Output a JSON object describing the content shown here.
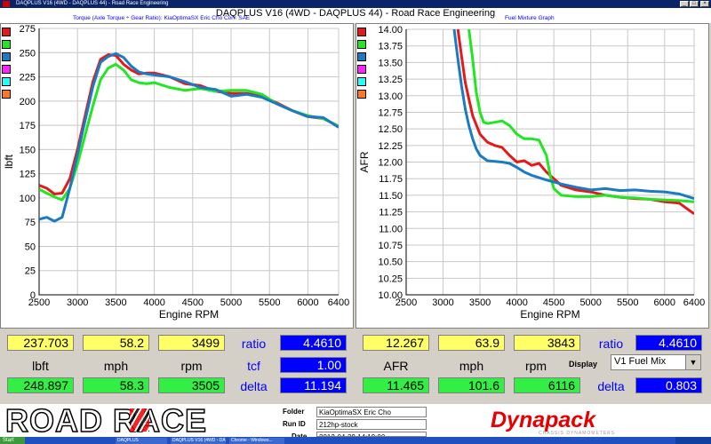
{
  "window": {
    "title": "DAQPLUS V16 (4WD - DAQPLUS 44) - Road Race Engineering",
    "title_bar_text": "DAQPLUS V16 (4WD - DAQPLUS 44) - Road Race Engineering"
  },
  "header": {
    "left_subtitle": "Torque (Axle Torque ÷ Gear Ratio): KiaOptimaSX Eric Cho     Corr: SAE",
    "right_subtitle": "Fuel Mixture Graph"
  },
  "colors": {
    "red": "#e41a1a",
    "blue": "#1a7ac2",
    "green": "#22e622",
    "magenta": "#ff22ff",
    "cyan": "#22ffff",
    "orange": "#ff7722",
    "field_yellow": "#ffff66",
    "field_green": "#33ee44",
    "field_blue": "#0000ff"
  },
  "run_colors": [
    "red",
    "green",
    "blue",
    "magenta",
    "cyan",
    "orange"
  ],
  "chart_data": [
    {
      "type": "line",
      "title": "",
      "xlabel": "Engine RPM",
      "ylabel": "lbft",
      "xlim": [
        2500,
        6400
      ],
      "ylim": [
        0,
        275
      ],
      "x_ticks": [
        "2500",
        "3000",
        "3500",
        "4000",
        "4500",
        "5000",
        "5500",
        "6000",
        "6400"
      ],
      "y_ticks": [
        "0",
        "25",
        "50",
        "75",
        "100",
        "125",
        "150",
        "175",
        "200",
        "225",
        "250",
        "275"
      ],
      "grid": true,
      "series": [
        {
          "color": "red",
          "x": [
            2500,
            2600,
            2700,
            2800,
            2900,
            3000,
            3100,
            3200,
            3300,
            3400,
            3500,
            3600,
            3700,
            3800,
            3900,
            4000,
            4200,
            4400,
            4600,
            4800,
            5000,
            5200,
            5400,
            5600,
            5800,
            6000,
            6200,
            6400
          ],
          "y": [
            113,
            110,
            104,
            105,
            120,
            150,
            185,
            220,
            243,
            248,
            247,
            238,
            232,
            228,
            229,
            229,
            225,
            218,
            216,
            210,
            208,
            208,
            205,
            198,
            190,
            184,
            182,
            174
          ]
        },
        {
          "color": "green",
          "x": [
            2500,
            2600,
            2700,
            2800,
            2900,
            3000,
            3100,
            3200,
            3300,
            3400,
            3500,
            3600,
            3700,
            3800,
            3900,
            4000,
            4200,
            4400,
            4600,
            4800,
            5000,
            5200,
            5400,
            5600,
            5800,
            6000,
            6200,
            6400
          ],
          "y": [
            109,
            105,
            101,
            98,
            110,
            135,
            165,
            195,
            222,
            234,
            238,
            232,
            222,
            219,
            218,
            219,
            214,
            211,
            213,
            210,
            211,
            211,
            207,
            197,
            190,
            185,
            182,
            174
          ]
        },
        {
          "color": "blue",
          "x": [
            2500,
            2600,
            2700,
            2800,
            2900,
            3000,
            3100,
            3200,
            3300,
            3400,
            3500,
            3600,
            3700,
            3800,
            3900,
            4000,
            4200,
            4400,
            4600,
            4800,
            5000,
            5200,
            5400,
            5600,
            5800,
            6000,
            6200,
            6400
          ],
          "y": [
            78,
            80,
            76,
            80,
            110,
            145,
            180,
            215,
            240,
            246,
            249,
            245,
            236,
            230,
            228,
            227,
            225,
            220,
            214,
            212,
            205,
            207,
            204,
            197,
            190,
            184,
            183,
            173
          ]
        }
      ]
    },
    {
      "type": "line",
      "title": "",
      "xlabel": "Engine RPM",
      "ylabel": "AFR",
      "xlim": [
        2500,
        6400
      ],
      "ylim": [
        10.0,
        14.0
      ],
      "x_ticks": [
        "2500",
        "3000",
        "3500",
        "4000",
        "4500",
        "5000",
        "5500",
        "6000",
        "6400"
      ],
      "y_ticks": [
        "10.00",
        "10.25",
        "10.50",
        "10.75",
        "11.00",
        "11.25",
        "11.50",
        "11.75",
        "12.00",
        "12.25",
        "12.50",
        "12.75",
        "13.00",
        "13.25",
        "13.50",
        "13.75",
        "14.00"
      ],
      "grid": true,
      "series": [
        {
          "color": "red",
          "x": [
            3200,
            3250,
            3300,
            3350,
            3400,
            3500,
            3600,
            3700,
            3800,
            3900,
            4000,
            4100,
            4200,
            4300,
            4400,
            4500,
            4600,
            4800,
            5000,
            5200,
            5400,
            5600,
            5800,
            6000,
            6200,
            6300,
            6400
          ],
          "y": [
            14.0,
            13.6,
            13.2,
            12.95,
            12.7,
            12.42,
            12.3,
            12.25,
            12.22,
            12.1,
            12.0,
            12.02,
            11.95,
            11.98,
            11.85,
            11.75,
            11.65,
            11.58,
            11.55,
            11.5,
            11.47,
            11.45,
            11.44,
            11.4,
            11.38,
            11.3,
            11.22
          ]
        },
        {
          "color": "green",
          "x": [
            3350,
            3400,
            3450,
            3500,
            3550,
            3600,
            3700,
            3800,
            3900,
            4000,
            4100,
            4200,
            4300,
            4400,
            4450,
            4500,
            4600,
            4800,
            5000,
            5200,
            5400,
            5600,
            5800,
            6000,
            6200,
            6400
          ],
          "y": [
            14.0,
            13.55,
            13.05,
            12.75,
            12.6,
            12.58,
            12.6,
            12.62,
            12.55,
            12.42,
            12.35,
            12.35,
            12.33,
            12.1,
            11.8,
            11.6,
            11.5,
            11.48,
            11.48,
            11.5,
            11.47,
            11.46,
            11.44,
            11.43,
            11.42,
            11.4
          ]
        },
        {
          "color": "blue",
          "x": [
            3150,
            3200,
            3250,
            3300,
            3350,
            3400,
            3450,
            3500,
            3600,
            3700,
            3800,
            3900,
            4000,
            4100,
            4200,
            4400,
            4600,
            4800,
            5000,
            5200,
            5400,
            5600,
            5800,
            6000,
            6200,
            6400
          ],
          "y": [
            14.0,
            13.55,
            13.15,
            12.8,
            12.55,
            12.35,
            12.2,
            12.1,
            12.02,
            12.01,
            12.0,
            11.98,
            11.92,
            11.85,
            11.8,
            11.73,
            11.67,
            11.62,
            11.58,
            11.6,
            11.57,
            11.58,
            11.56,
            11.55,
            11.52,
            11.45
          ]
        }
      ]
    }
  ],
  "left_readouts": {
    "row1": [
      "237.703",
      "58.2",
      "3499"
    ],
    "labels": [
      "lbft",
      "mph",
      "rpm"
    ],
    "row2": [
      "248.897",
      "58.3",
      "3505"
    ],
    "ratio_label": "ratio",
    "ratio_value": "4.4610",
    "tcf_label": "tcf",
    "tcf_value": "1.00",
    "delta_label": "delta",
    "delta_value": "11.194"
  },
  "right_readouts": {
    "row1": [
      "12.267",
      "63.9",
      "3843"
    ],
    "labels": [
      "AFR",
      "mph",
      "rpm"
    ],
    "row2": [
      "11.465",
      "101.6",
      "6116"
    ],
    "ratio_label": "ratio",
    "ratio_value": "4.4610",
    "display_label": "Display",
    "display_value": "V1 Fuel Mix",
    "delta_label": "delta",
    "delta_value": "0.803"
  },
  "info": {
    "logo_text": "ROAD RACE",
    "folder_label": "Folder",
    "folder_value": "KiaOptimaSX Eric Cho",
    "runid_label": "Run ID",
    "runid_value": "212hp-stock",
    "date_label": "Date",
    "date_value": "2012-04-29 14:19:00",
    "brand": "Dynapack",
    "brand_sub": "CHASSIS DYNAMOMETERS"
  },
  "taskbar": {
    "start_label": "Start",
    "item1": "DAQPLUS",
    "item2": "DAQPLUS V16 (4WD - DAQPLUS 44)",
    "item3": "Chrome - Windows..."
  }
}
